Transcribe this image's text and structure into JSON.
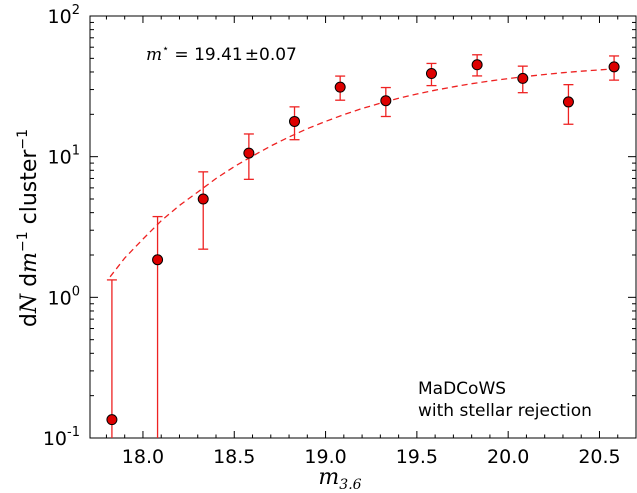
{
  "chart_data": {
    "type": "scatter",
    "x_label_base": "m",
    "x_label_sub": "3.6",
    "y_label_parts": [
      "d",
      "N",
      " d",
      "m",
      "−1",
      "  cluster",
      "−1"
    ],
    "annotation_lines": [
      "MaDCoWS",
      "with stellar rejection"
    ],
    "mstar_symbol": "m",
    "mstar_sup": "⋆",
    "mstar_value": " = 19.41",
    "mstar_pm": "±",
    "mstar_err": "0.07",
    "x_ticks": [
      "18.0",
      "18.5",
      "19.0",
      "19.5",
      "20.0",
      "20.5"
    ],
    "y_ticks": [
      {
        "base": "10",
        "exp": "-1"
      },
      {
        "base": "10",
        "exp": "0"
      },
      {
        "base": "10",
        "exp": "1"
      },
      {
        "base": "10",
        "exp": "2"
      }
    ],
    "xlim": [
      17.71,
      20.7
    ],
    "ylim": [
      0.1,
      100
    ],
    "y_scale": "log",
    "grid": false,
    "points": [
      {
        "x": 17.83,
        "y": 0.135,
        "lo": 0.1,
        "hi": 1.33
      },
      {
        "x": 18.08,
        "y": 1.85,
        "lo": 0.1,
        "hi": 3.75
      },
      {
        "x": 18.33,
        "y": 5.0,
        "lo": 2.2,
        "hi": 7.8
      },
      {
        "x": 18.58,
        "y": 10.6,
        "lo": 6.9,
        "hi": 14.5
      },
      {
        "x": 18.83,
        "y": 17.8,
        "lo": 13.2,
        "hi": 22.6
      },
      {
        "x": 19.08,
        "y": 31.2,
        "lo": 25.2,
        "hi": 37.4
      },
      {
        "x": 19.33,
        "y": 25.0,
        "lo": 19.3,
        "hi": 31.0
      },
      {
        "x": 19.58,
        "y": 39.0,
        "lo": 32.0,
        "hi": 46.0
      },
      {
        "x": 19.83,
        "y": 45.0,
        "lo": 37.5,
        "hi": 53.0
      },
      {
        "x": 20.08,
        "y": 36.0,
        "lo": 28.5,
        "hi": 44.0
      },
      {
        "x": 20.33,
        "y": 24.5,
        "lo": 17.0,
        "hi": 32.5
      },
      {
        "x": 20.58,
        "y": 43.5,
        "lo": 35.0,
        "hi": 52.0
      }
    ],
    "fit_curve": {
      "style": "dashed",
      "x": [
        17.82,
        17.9,
        18.0,
        18.1,
        18.2,
        18.3,
        18.4,
        18.5,
        18.6,
        18.7,
        18.8,
        18.9,
        19.0,
        19.1,
        19.2,
        19.3,
        19.4,
        19.5,
        19.6,
        19.7,
        19.8,
        19.9,
        20.0,
        20.1,
        20.2,
        20.3,
        20.4,
        20.5,
        20.58
      ],
      "y": [
        1.4,
        1.9,
        2.6,
        3.5,
        4.5,
        5.6,
        7.0,
        8.5,
        10.1,
        11.9,
        13.8,
        15.8,
        17.8,
        19.9,
        22.0,
        24.0,
        26.0,
        27.9,
        29.7,
        31.4,
        33.0,
        34.5,
        35.9,
        37.2,
        38.4,
        39.5,
        40.5,
        41.4,
        42.1
      ]
    },
    "colors": {
      "marker_fill": "#dd0000",
      "errorbar": "#ee2222",
      "fit": "#ee2222",
      "axis": "#000000"
    }
  }
}
